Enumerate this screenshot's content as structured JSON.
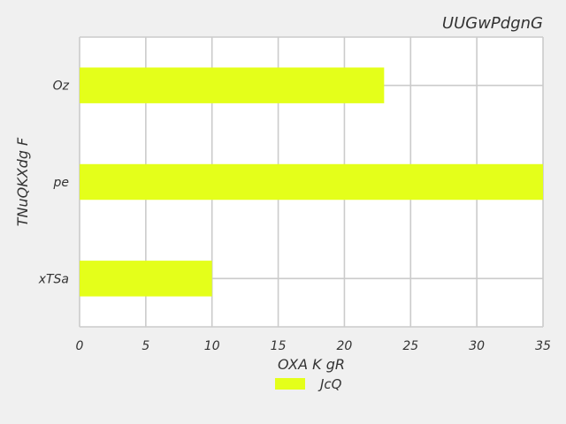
{
  "chart_data": {
    "type": "bar",
    "orientation": "horizontal",
    "title": "UUGwPdgnG",
    "xlabel": "OXA K gR",
    "ylabel": "TNuQKXdg F",
    "categories": [
      "Oz",
      "pe",
      "xTSa"
    ],
    "series": [
      {
        "name": "JcQ",
        "values": [
          23,
          35,
          10
        ],
        "color": "#e4ff1a"
      }
    ],
    "xlim": [
      0,
      35
    ],
    "xticks": [
      0,
      5,
      10,
      15,
      20,
      25,
      30,
      35
    ],
    "grid": true,
    "legend": "bottom-center"
  }
}
